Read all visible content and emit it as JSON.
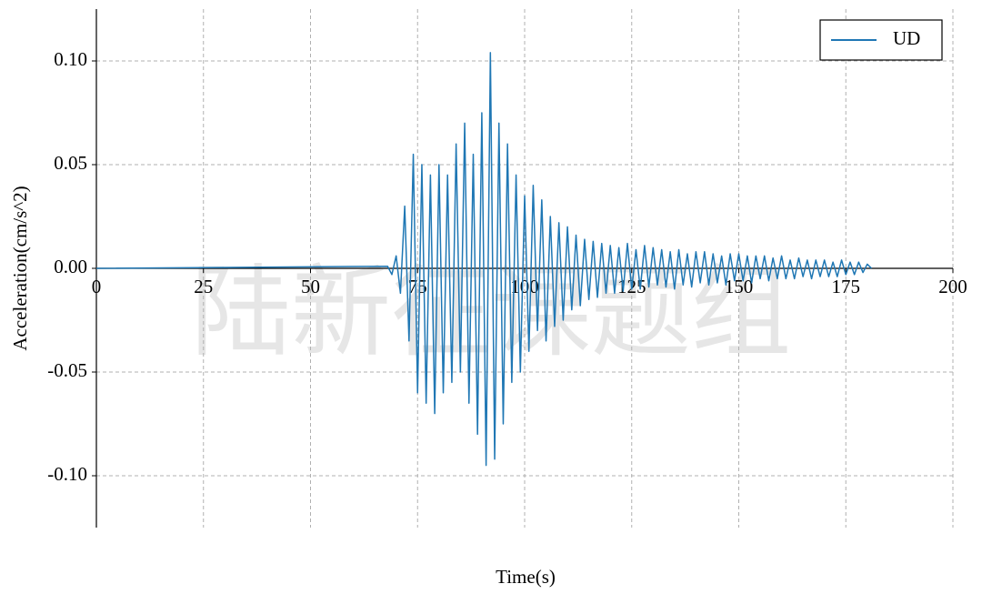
{
  "chart_data": {
    "type": "line",
    "watermark": "陆新征课题组",
    "xlabel": "Time(s)",
    "ylabel": "Acceleration(cm/s^2)",
    "xlim": [
      0,
      200
    ],
    "ylim": [
      -0.125,
      0.125
    ],
    "xticks": [
      0,
      25,
      50,
      75,
      100,
      125,
      150,
      175,
      200
    ],
    "yticks": [
      {
        "value": -0.1,
        "label": "-0.10"
      },
      {
        "value": -0.05,
        "label": "-0.05"
      },
      {
        "value": 0,
        "label": "0.00"
      },
      {
        "value": 0.05,
        "label": "0.05"
      },
      {
        "value": 0.1,
        "label": "0.10"
      }
    ],
    "grid": true,
    "legend": "upper right",
    "x": [
      0,
      68,
      69,
      70,
      71,
      72,
      73,
      74,
      75,
      76,
      77,
      78,
      79,
      80,
      81,
      82,
      83,
      84,
      85,
      86,
      87,
      88,
      89,
      90,
      91,
      92,
      93,
      94,
      95,
      96,
      97,
      98,
      99,
      100,
      101,
      102,
      103,
      104,
      105,
      106,
      107,
      108,
      109,
      110,
      111,
      112,
      113,
      114,
      115,
      116,
      117,
      118,
      119,
      120,
      121,
      122,
      123,
      124,
      125,
      126,
      127,
      128,
      129,
      130,
      131,
      132,
      133,
      134,
      135,
      136,
      137,
      138,
      139,
      140,
      141,
      142,
      143,
      144,
      145,
      146,
      147,
      148,
      149,
      150,
      151,
      152,
      153,
      154,
      155,
      156,
      157,
      158,
      159,
      160,
      161,
      162,
      163,
      164,
      165,
      166,
      167,
      168,
      169,
      170,
      171,
      172,
      173,
      174,
      175,
      176,
      177,
      178,
      179,
      180,
      181
    ],
    "series": [
      {
        "name": "UD",
        "color": "#1f77b4",
        "values": [
          0,
          0.001,
          -0.003,
          0.006,
          -0.012,
          0.03,
          -0.035,
          0.055,
          -0.06,
          0.05,
          -0.065,
          0.045,
          -0.07,
          0.05,
          -0.06,
          0.045,
          -0.055,
          0.06,
          -0.05,
          0.07,
          -0.065,
          0.055,
          -0.08,
          0.075,
          -0.095,
          0.104,
          -0.092,
          0.07,
          -0.075,
          0.06,
          -0.055,
          0.045,
          -0.05,
          0.035,
          -0.04,
          0.04,
          -0.03,
          0.033,
          -0.035,
          0.025,
          -0.028,
          0.022,
          -0.025,
          0.02,
          -0.02,
          0.016,
          -0.018,
          0.014,
          -0.015,
          0.013,
          -0.014,
          0.012,
          -0.012,
          0.011,
          -0.012,
          0.01,
          -0.011,
          0.012,
          -0.01,
          0.009,
          -0.01,
          0.011,
          -0.009,
          0.01,
          -0.008,
          0.009,
          -0.009,
          0.008,
          -0.01,
          0.009,
          -0.008,
          0.007,
          -0.009,
          0.008,
          -0.007,
          0.008,
          -0.008,
          0.007,
          -0.007,
          0.006,
          -0.008,
          0.007,
          -0.006,
          0.007,
          -0.006,
          0.006,
          -0.007,
          0.006,
          -0.005,
          0.006,
          -0.006,
          0.005,
          -0.005,
          0.006,
          -0.005,
          0.004,
          -0.005,
          0.005,
          -0.004,
          0.004,
          -0.005,
          0.004,
          -0.004,
          0.004,
          -0.004,
          0.003,
          -0.004,
          0.004,
          -0.003,
          0.003,
          -0.003,
          0.003,
          -0.002,
          0.002,
          0
        ]
      }
    ]
  }
}
